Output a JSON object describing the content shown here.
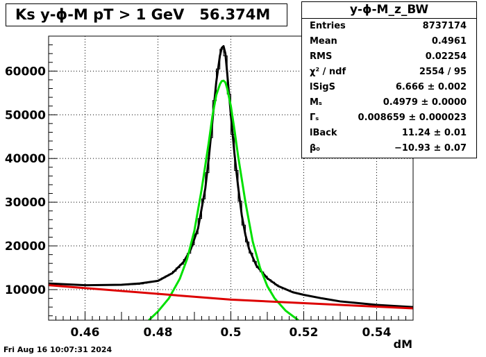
{
  "title": "Ks y-ϕ-M pT > 1 GeV   56.374M",
  "footer_timestamp": "Fri Aug 16 10:07:31 2024",
  "stats": {
    "name": "y-ϕ-M_z_BW",
    "rows": [
      {
        "label": "Entries",
        "value": "8737174"
      },
      {
        "label": "Mean",
        "value": "0.4961"
      },
      {
        "label": "RMS",
        "value": "0.02254"
      },
      {
        "label": "χ² / ndf",
        "value": "2554 / 95"
      },
      {
        "label": "lSigS",
        "value": "6.666 ± 0.002"
      },
      {
        "label": "Mₛ",
        "value": "0.4979 ± 0.0000"
      },
      {
        "label": "Γₛ",
        "value": "0.008659 ± 0.000023"
      },
      {
        "label": "lBack",
        "value": "11.24 ± 0.01"
      },
      {
        "label": "β₀",
        "value": "−10.93 ± 0.07"
      }
    ]
  },
  "chart_data": {
    "type": "line",
    "xlabel": "dM",
    "ylabel": "",
    "xlim": [
      0.45,
      0.55
    ],
    "ylim": [
      3000,
      68000
    ],
    "x_ticks": [
      0.46,
      0.48,
      0.5,
      0.52,
      0.54
    ],
    "x_tick_labels": [
      "0.46",
      "0.48",
      "0.5",
      "0.52",
      "0.54"
    ],
    "y_ticks": [
      10000,
      20000,
      30000,
      40000,
      50000,
      60000
    ],
    "y_tick_labels": [
      "10000",
      "20000",
      "30000",
      "40000",
      "50000",
      "60000"
    ],
    "grid": true,
    "series": [
      {
        "role": "histogram",
        "color": "#000000",
        "x": [
          0.45,
          0.46,
          0.47,
          0.475,
          0.48,
          0.484,
          0.487,
          0.489,
          0.491,
          0.493,
          0.494,
          0.495,
          0.496,
          0.497,
          0.4975,
          0.498,
          0.4985,
          0.499,
          0.5,
          0.501,
          0.502,
          0.503,
          0.504,
          0.505,
          0.507,
          0.51,
          0.513,
          0.517,
          0.52,
          0.525,
          0.53,
          0.54,
          0.55
        ],
        "y": [
          11400,
          11100,
          11000,
          11200,
          12000,
          13800,
          16200,
          19000,
          24000,
          33000,
          40500,
          49000,
          57500,
          63500,
          65000,
          65500,
          63500,
          59500,
          50000,
          41000,
          33500,
          27000,
          22500,
          19300,
          15500,
          12600,
          10800,
          9400,
          8800,
          8000,
          7300,
          6500,
          6000
        ]
      },
      {
        "role": "total fit",
        "color": "#000000",
        "x": [
          0.45,
          0.46,
          0.47,
          0.475,
          0.48,
          0.484,
          0.487,
          0.489,
          0.491,
          0.493,
          0.494,
          0.495,
          0.496,
          0.497,
          0.4975,
          0.498,
          0.4985,
          0.499,
          0.5,
          0.501,
          0.502,
          0.503,
          0.504,
          0.505,
          0.507,
          0.51,
          0.513,
          0.517,
          0.52,
          0.525,
          0.53,
          0.54,
          0.55
        ],
        "y": [
          11400,
          11000,
          11100,
          11400,
          12000,
          13800,
          16300,
          19200,
          24000,
          33200,
          40500,
          49000,
          57500,
          63500,
          65300,
          65700,
          64000,
          59500,
          50000,
          41000,
          33500,
          27000,
          22500,
          19300,
          15500,
          12600,
          10800,
          9400,
          8800,
          8000,
          7300,
          6500,
          6000
        ]
      },
      {
        "role": "signal",
        "color": "#00e000",
        "x": [
          0.4775,
          0.48,
          0.483,
          0.486,
          0.488,
          0.49,
          0.492,
          0.494,
          0.495,
          0.496,
          0.497,
          0.4975,
          0.498,
          0.4985,
          0.499,
          0.5,
          0.501,
          0.502,
          0.504,
          0.506,
          0.508,
          0.51,
          0.512,
          0.515,
          0.5185
        ],
        "y": [
          3000,
          5000,
          8000,
          12500,
          17000,
          23500,
          33000,
          44000,
          50000,
          54500,
          57000,
          57700,
          57800,
          57400,
          56000,
          52000,
          46500,
          40500,
          30000,
          21000,
          15000,
          10800,
          8000,
          5200,
          3000
        ]
      },
      {
        "role": "background",
        "color": "#dd0000",
        "x": [
          0.45,
          0.5,
          0.55
        ],
        "y": [
          11000,
          7700,
          5700
        ]
      }
    ]
  }
}
